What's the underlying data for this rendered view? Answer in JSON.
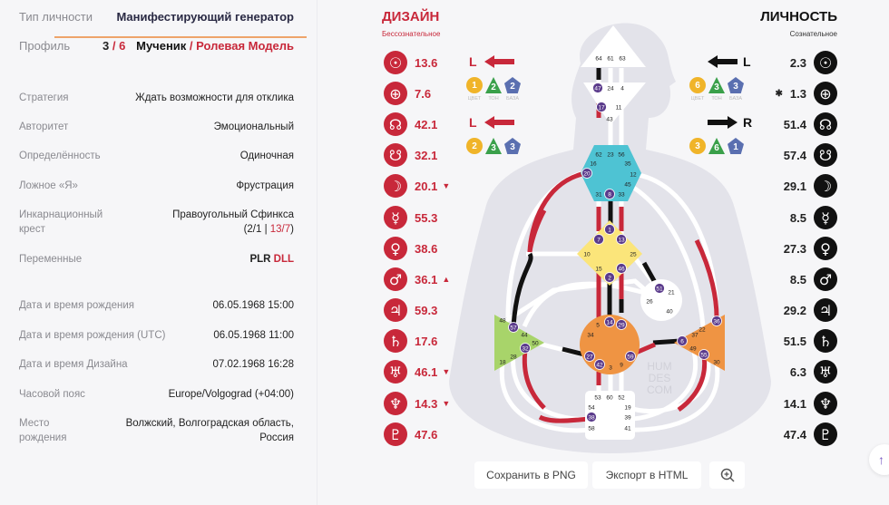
{
  "info": {
    "type": {
      "label": "Тип личности",
      "value": "Манифестирующий генератор"
    },
    "profile": {
      "label": "Профиль",
      "num_a": "3",
      "sep": " / ",
      "num_b": "6",
      "name_a": "Мученик",
      "name_sep": " / ",
      "name_b": "Ролевая Модель"
    },
    "strategy": {
      "label": "Стратегия",
      "value": "Ждать возможности для отклика"
    },
    "authority": {
      "label": "Авторитет",
      "value": "Эмоциональный"
    },
    "definition": {
      "label": "Определённость",
      "value": "Одиночная"
    },
    "false_self": {
      "label": "Ложное «Я»",
      "value": "Фрустрация"
    },
    "cross": {
      "label_1": "Инкарнационный",
      "label_2": "крест",
      "value": "Правоугольный Сфинкса",
      "open": "(2/1 | ",
      "red": "13/7",
      "close": ")"
    },
    "variables": {
      "label": "Переменные",
      "black": "PLR ",
      "red": "DLL"
    },
    "birth": {
      "label": "Дата и время рождения",
      "value": "06.05.1968 15:00"
    },
    "birth_utc": {
      "label": "Дата и время рождения (UTC)",
      "value": "06.05.1968 11:00"
    },
    "design_date": {
      "label": "Дата и время Дизайна",
      "value": "07.02.1968 16:28"
    },
    "timezone": {
      "label": "Часовой пояс",
      "value": "Europe/Volgograd (+04:00)"
    },
    "place": {
      "label_1": "Место",
      "label_2": "рождения",
      "value_1": "Волжский, Волгоградская область,",
      "value_2": "Россия"
    }
  },
  "design": {
    "title": "ДИЗАЙН",
    "subtitle": "Бессознательное",
    "color": "#c8283a",
    "planets": [
      {
        "planet": "sun",
        "glyph": "☉",
        "value": "13.6",
        "mark": ""
      },
      {
        "planet": "earth",
        "glyph": "⊕",
        "value": "7.6",
        "mark": ""
      },
      {
        "planet": "north-node",
        "glyph": "☊",
        "value": "42.1",
        "mark": ""
      },
      {
        "planet": "south-node",
        "glyph": "☋",
        "value": "32.1",
        "mark": ""
      },
      {
        "planet": "moon",
        "glyph": "☽",
        "value": "20.1",
        "mark": "▼"
      },
      {
        "planet": "mercury",
        "glyph": "☿",
        "value": "55.3",
        "mark": ""
      },
      {
        "planet": "venus",
        "glyph": "♀",
        "value": "38.6",
        "mark": ""
      },
      {
        "planet": "mars",
        "glyph": "♂",
        "value": "36.1",
        "mark": "▲"
      },
      {
        "planet": "jupiter",
        "glyph": "♃",
        "value": "59.3",
        "mark": ""
      },
      {
        "planet": "saturn",
        "glyph": "♄",
        "value": "17.6",
        "mark": ""
      },
      {
        "planet": "uranus",
        "glyph": "♅",
        "value": "46.1",
        "mark": "▼"
      },
      {
        "planet": "neptune",
        "glyph": "♆",
        "value": "14.3",
        "mark": "▼"
      },
      {
        "planet": "pluto",
        "glyph": "♇",
        "value": "47.6",
        "mark": ""
      }
    ],
    "arrows": [
      {
        "letter": "L",
        "direction": "left",
        "color": "1",
        "tone": "2",
        "base": "2"
      },
      {
        "letter": "L",
        "direction": "left",
        "color": "2",
        "tone": "3",
        "base": "3"
      }
    ]
  },
  "personality": {
    "title": "ЛИЧНОСТЬ",
    "subtitle": "Сознательное",
    "color": "#111111",
    "planets": [
      {
        "planet": "sun",
        "glyph": "☉",
        "value": "2.3",
        "mark": ""
      },
      {
        "planet": "earth",
        "glyph": "⊕",
        "value": "1.3",
        "mark": "✱"
      },
      {
        "planet": "north-node",
        "glyph": "☊",
        "value": "51.4",
        "mark": ""
      },
      {
        "planet": "south-node",
        "glyph": "☋",
        "value": "57.4",
        "mark": ""
      },
      {
        "planet": "moon",
        "glyph": "☽",
        "value": "29.1",
        "mark": ""
      },
      {
        "planet": "mercury",
        "glyph": "☿",
        "value": "8.5",
        "mark": ""
      },
      {
        "planet": "venus",
        "glyph": "♀",
        "value": "27.3",
        "mark": ""
      },
      {
        "planet": "mars",
        "glyph": "♂",
        "value": "8.5",
        "mark": ""
      },
      {
        "planet": "jupiter",
        "glyph": "♃",
        "value": "29.2",
        "mark": ""
      },
      {
        "planet": "saturn",
        "glyph": "♄",
        "value": "51.5",
        "mark": ""
      },
      {
        "planet": "uranus",
        "glyph": "♅",
        "value": "6.3",
        "mark": ""
      },
      {
        "planet": "neptune",
        "glyph": "♆",
        "value": "14.1",
        "mark": ""
      },
      {
        "planet": "pluto",
        "glyph": "♇",
        "value": "47.4",
        "mark": ""
      }
    ],
    "arrows": [
      {
        "letter": "L",
        "direction": "left",
        "color": "6",
        "tone": "3",
        "base": "3"
      },
      {
        "letter": "R",
        "direction": "right",
        "color": "3",
        "tone": "6",
        "base": "1"
      }
    ]
  },
  "badge_labels": {
    "color": "ЦВЕТ",
    "tone": "ТОН",
    "base": "БАЗА"
  },
  "badge_colors": {
    "color": "#f0b429",
    "tone": "#3aa04a",
    "base": "#5a6fb0"
  },
  "bodygraph": {
    "watermark": [
      "HUM",
      "DES",
      "COM"
    ],
    "active_gate_color": "#5b3b8c",
    "centers": {
      "head": {
        "fill": "#ffffff",
        "gates": [
          64,
          61,
          63
        ]
      },
      "ajna": {
        "fill": "#ffffff",
        "gates": [
          47,
          24,
          4,
          17,
          11,
          43
        ]
      },
      "throat": {
        "fill": "#4ec3d3",
        "gates": [
          62,
          23,
          56,
          16,
          35,
          20,
          12,
          45,
          31,
          8,
          33
        ]
      },
      "g": {
        "fill": "#fbe57a",
        "gates": [
          1,
          7,
          13,
          10,
          25,
          15,
          46,
          2
        ]
      },
      "heart": {
        "fill": "#ffffff",
        "gates": [
          51,
          21,
          26,
          40
        ]
      },
      "sacral": {
        "fill": "#ef9443",
        "gates": [
          5,
          14,
          29,
          34,
          27,
          42,
          3,
          9,
          59
        ]
      },
      "spleen": {
        "fill": "#a8d46a",
        "gates": [
          48,
          57,
          44,
          50,
          32,
          28,
          18
        ]
      },
      "solar_plexus": {
        "fill": "#ef9443",
        "gates": [
          36,
          22,
          37,
          6,
          49,
          55,
          30
        ]
      },
      "root": {
        "fill": "#ffffff",
        "gates": [
          53,
          60,
          52,
          54,
          19,
          38,
          39,
          58,
          41
        ]
      }
    },
    "active_gates": [
      47,
      17,
      20,
      8,
      1,
      7,
      13,
      46,
      2,
      51,
      14,
      29,
      27,
      42,
      59,
      57,
      32,
      36,
      6,
      55,
      38
    ]
  },
  "toolbar": {
    "save_png": "Сохранить в PNG",
    "export_html": "Экспорт в HTML"
  }
}
